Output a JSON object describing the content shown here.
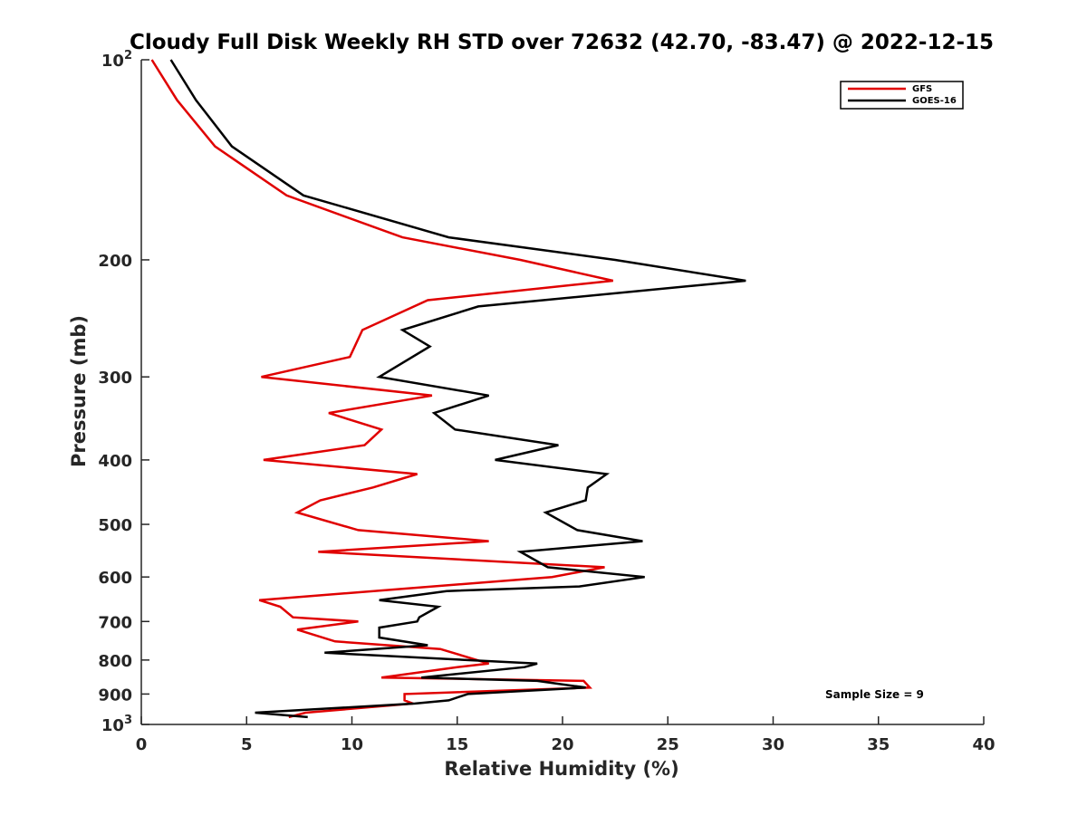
{
  "chart_data": {
    "type": "line",
    "title": "Cloudy Full Disk Weekly RH STD over 72632 (42.70, -83.47) @ 2022-12-15",
    "xlabel": "Relative Humidity (%)",
    "ylabel": "Pressure (mb)",
    "xlim": [
      0,
      40
    ],
    "ylim": [
      100,
      1000
    ],
    "y_scale": "log",
    "y_reversed": true,
    "grid": false,
    "legend_position": "top-right",
    "x_ticks": [
      "0",
      "5",
      "10",
      "15",
      "20",
      "25",
      "30",
      "35",
      "40"
    ],
    "y_ticks": [
      {
        "value": 100,
        "label": "10",
        "sup": "2"
      },
      {
        "value": 200,
        "label": "200",
        "sup": ""
      },
      {
        "value": 300,
        "label": "300",
        "sup": ""
      },
      {
        "value": 400,
        "label": "400",
        "sup": ""
      },
      {
        "value": 500,
        "label": "500",
        "sup": ""
      },
      {
        "value": 600,
        "label": "600",
        "sup": ""
      },
      {
        "value": 700,
        "label": "700",
        "sup": ""
      },
      {
        "value": 800,
        "label": "800",
        "sup": ""
      },
      {
        "value": 900,
        "label": "900",
        "sup": ""
      },
      {
        "value": 1000,
        "label": "10",
        "sup": "3"
      }
    ],
    "series": [
      {
        "name": "GFS",
        "color": "#e00000",
        "points": [
          [
            0.5,
            100
          ],
          [
            1.7,
            115
          ],
          [
            3.5,
            135
          ],
          [
            6.9,
            160
          ],
          [
            12.4,
            185
          ],
          [
            18.0,
            200
          ],
          [
            22.4,
            215
          ],
          [
            13.6,
            230
          ],
          [
            10.5,
            255
          ],
          [
            9.9,
            280
          ],
          [
            5.7,
            300
          ],
          [
            13.8,
            320
          ],
          [
            8.9,
            340
          ],
          [
            11.4,
            360
          ],
          [
            10.6,
            380
          ],
          [
            5.8,
            400
          ],
          [
            13.1,
            420
          ],
          [
            11.0,
            440
          ],
          [
            8.5,
            460
          ],
          [
            7.4,
            480
          ],
          [
            10.3,
            510
          ],
          [
            16.5,
            530
          ],
          [
            8.4,
            550
          ],
          [
            22.0,
            580
          ],
          [
            19.5,
            600
          ],
          [
            5.6,
            650
          ],
          [
            6.6,
            665
          ],
          [
            7.2,
            690
          ],
          [
            10.3,
            700
          ],
          [
            7.4,
            720
          ],
          [
            9.2,
            750
          ],
          [
            14.2,
            770
          ],
          [
            16.5,
            810
          ],
          [
            15.0,
            820
          ],
          [
            11.4,
            850
          ],
          [
            21.0,
            860
          ],
          [
            21.3,
            880
          ],
          [
            12.5,
            900
          ],
          [
            12.5,
            920
          ],
          [
            12.9,
            930
          ],
          [
            7.8,
            960
          ],
          [
            7.0,
            975
          ]
        ]
      },
      {
        "name": "GOES-16",
        "color": "#000000",
        "points": [
          [
            1.4,
            100
          ],
          [
            2.6,
            115
          ],
          [
            4.3,
            135
          ],
          [
            7.7,
            160
          ],
          [
            14.6,
            185
          ],
          [
            22.5,
            200
          ],
          [
            28.7,
            215
          ],
          [
            16.0,
            235
          ],
          [
            12.4,
            255
          ],
          [
            13.7,
            270
          ],
          [
            11.3,
            300
          ],
          [
            16.5,
            320
          ],
          [
            13.9,
            340
          ],
          [
            14.9,
            360
          ],
          [
            19.8,
            380
          ],
          [
            16.8,
            400
          ],
          [
            22.1,
            420
          ],
          [
            21.2,
            440
          ],
          [
            21.1,
            460
          ],
          [
            19.2,
            480
          ],
          [
            20.7,
            510
          ],
          [
            23.8,
            530
          ],
          [
            18.0,
            550
          ],
          [
            19.3,
            580
          ],
          [
            23.9,
            600
          ],
          [
            20.8,
            620
          ],
          [
            14.5,
            630
          ],
          [
            11.3,
            650
          ],
          [
            14.1,
            665
          ],
          [
            13.2,
            690
          ],
          [
            13.1,
            700
          ],
          [
            11.3,
            715
          ],
          [
            11.3,
            740
          ],
          [
            13.6,
            760
          ],
          [
            8.7,
            780
          ],
          [
            18.8,
            810
          ],
          [
            18.2,
            820
          ],
          [
            13.3,
            850
          ],
          [
            18.8,
            860
          ],
          [
            21.1,
            880
          ],
          [
            15.5,
            900
          ],
          [
            14.6,
            920
          ],
          [
            13.0,
            930
          ],
          [
            5.4,
            960
          ],
          [
            7.9,
            975
          ]
        ]
      }
    ],
    "annotations": [
      "Sample Size = 9"
    ]
  }
}
